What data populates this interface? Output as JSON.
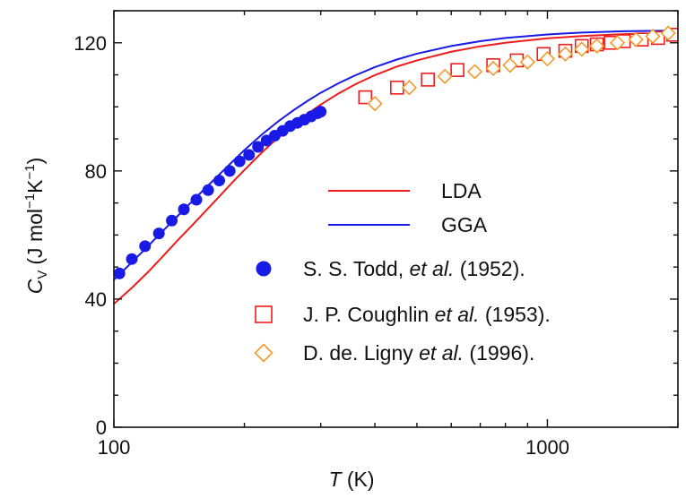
{
  "chart_data": {
    "type": "scatter",
    "x_scale": "log",
    "xlim": [
      100,
      2000
    ],
    "ylim": [
      0,
      130
    ],
    "xticks": [
      100,
      1000
    ],
    "xtick_labels": [
      "100",
      "1000"
    ],
    "yticks": [
      0,
      40,
      80,
      120
    ],
    "ytick_labels": [
      "0",
      "40",
      "80",
      "120"
    ],
    "xlabel": {
      "symbol": "T",
      "unit": "(K)"
    },
    "ylabel": {
      "symbol": "C",
      "sub": "V",
      "unit_a": "(J mol",
      "sup_a": "−1",
      "unit_b": "K",
      "sup_b": "−1",
      "unit_c": ")"
    },
    "grid": false,
    "legend_position": "center-right",
    "series": [
      {
        "name": "LDA",
        "kind": "line",
        "color": "#ee1c1c",
        "x": [
          100,
          110,
          120,
          130,
          140,
          150,
          160,
          170,
          180,
          190,
          200,
          220,
          240,
          260,
          280,
          300,
          330,
          360,
          400,
          450,
          500,
          600,
          700,
          800,
          1000,
          1200,
          1500,
          2000
        ],
        "y": [
          38.5,
          43.5,
          48.5,
          53.5,
          58.2,
          62.4,
          66.4,
          70.2,
          73.8,
          77.2,
          80.3,
          85.9,
          90.6,
          94.6,
          97.9,
          100.7,
          104.2,
          107.0,
          109.9,
          112.6,
          114.5,
          117.2,
          118.9,
          120.0,
          121.4,
          122.1,
          122.7,
          123.0
        ]
      },
      {
        "name": "GGA",
        "kind": "line",
        "color": "#1a1ae6",
        "x": [
          100,
          110,
          120,
          130,
          140,
          150,
          160,
          170,
          180,
          190,
          200,
          220,
          240,
          260,
          280,
          300,
          330,
          360,
          400,
          450,
          500,
          600,
          700,
          800,
          1000,
          1200,
          1500,
          2000
        ],
        "y": [
          46.0,
          51.5,
          56.6,
          61.4,
          65.8,
          69.9,
          73.7,
          77.2,
          80.5,
          83.6,
          86.5,
          91.5,
          95.6,
          99.0,
          101.9,
          104.4,
          107.4,
          109.8,
          112.4,
          114.8,
          116.6,
          119.0,
          120.5,
          121.5,
          122.6,
          123.2,
          123.6,
          123.8
        ]
      },
      {
        "name": "S. S. Todd, et al. (1952).",
        "kind": "filled-circle",
        "color": "#1a1ae6",
        "x": [
          103,
          110,
          118,
          127,
          136,
          145,
          155,
          165,
          175,
          185,
          195,
          205,
          215,
          225,
          235,
          245,
          255,
          265,
          275,
          285,
          295,
          300
        ],
        "y": [
          48,
          52.5,
          56.5,
          60.5,
          64.5,
          68,
          71,
          74,
          77,
          80,
          83,
          85,
          87.5,
          89.5,
          91,
          92.5,
          94,
          95,
          96,
          97,
          98,
          98.5
        ]
      },
      {
        "name": "J. P. Coughlin et al. (1953).",
        "kind": "open-square",
        "color": "#ee1c1c",
        "x": [
          380,
          450,
          530,
          620,
          750,
          850,
          980,
          1100,
          1200,
          1300,
          1400,
          1500,
          1650,
          1800,
          1950
        ],
        "y": [
          103,
          106,
          108.5,
          111.5,
          113,
          114.5,
          116.5,
          117.5,
          119,
          119.5,
          120,
          120.5,
          121,
          121.5,
          122.5
        ]
      },
      {
        "name": "D. de. Ligny et al. (1996).",
        "kind": "open-diamond",
        "color": "#f39a2a",
        "x": [
          400,
          480,
          580,
          680,
          750,
          820,
          900,
          1000,
          1100,
          1200,
          1300,
          1450,
          1600,
          1750,
          1900
        ],
        "y": [
          101,
          106,
          109.5,
          111,
          112,
          113,
          114,
          115,
          116.5,
          118,
          119,
          120,
          121,
          122,
          123
        ]
      }
    ]
  },
  "legend": {
    "entries": [
      {
        "label": "LDA"
      },
      {
        "label": "GGA"
      },
      {
        "pre": "S. S. Todd, ",
        "ital": "et al.",
        "post": "  (1952)."
      },
      {
        "pre": "J. P. Coughlin ",
        "ital": "et al.",
        "post": "  (1953)."
      },
      {
        "pre": "D. de. Ligny ",
        "ital": "et al.",
        "post": "  (1996)."
      }
    ]
  }
}
